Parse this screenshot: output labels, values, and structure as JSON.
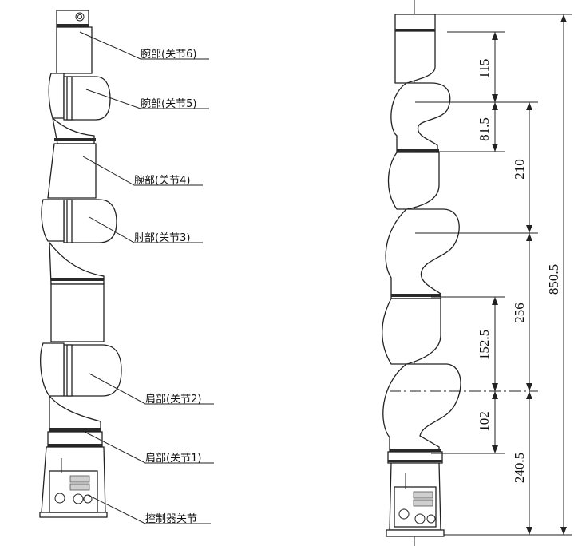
{
  "labels": {
    "wrist_joint6": "腕部(关节6)",
    "wrist_joint5": "腕部(关节5)",
    "wrist_joint4": "腕部(关节4)",
    "elbow_joint3": "肘部(关节3)",
    "shoulder_joint2": "肩部(关节2)",
    "shoulder_joint1": "肩部(关节1)",
    "controller_joint": "控制器关节"
  },
  "dimensions": {
    "d115": "115",
    "d81_5": "81.5",
    "d210": "210",
    "d256": "256",
    "d152_5": "152.5",
    "d102": "102",
    "d240_5": "240.5",
    "d850_5": "850.5"
  }
}
